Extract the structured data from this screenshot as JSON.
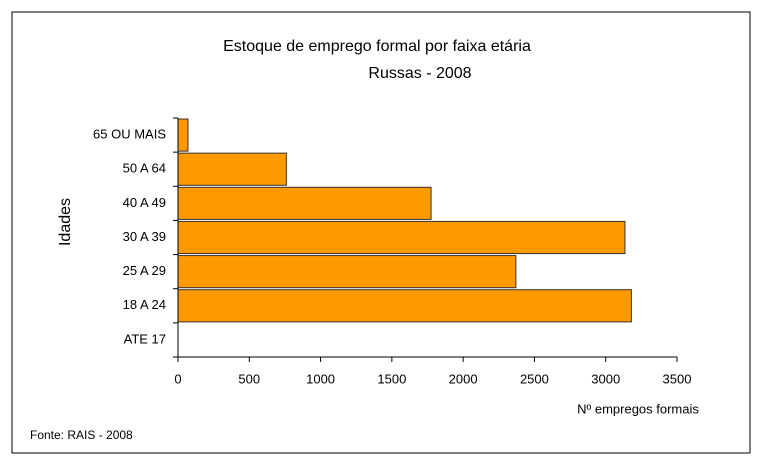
{
  "chart_data": {
    "type": "barh",
    "title": "Estoque de emprego formal por faixa etária",
    "subtitle": "Russas - 2008",
    "x_label": "Nº empregos formais",
    "y_label": "Idades",
    "source": "Fonte: RAIS - 2008",
    "categories": [
      "65 OU MAIS",
      "50 A 64",
      "40 A 49",
      "30 A 39",
      "25 A 29",
      "18 A 24",
      "ATE 17"
    ],
    "values": [
      70,
      760,
      1775,
      3135,
      2370,
      3180,
      0
    ],
    "color": "#ff9900",
    "xlim": [
      0,
      3500
    ],
    "xticks": [
      0,
      500,
      1000,
      1500,
      2000,
      2500,
      3000,
      3500
    ],
    "grid": false
  }
}
